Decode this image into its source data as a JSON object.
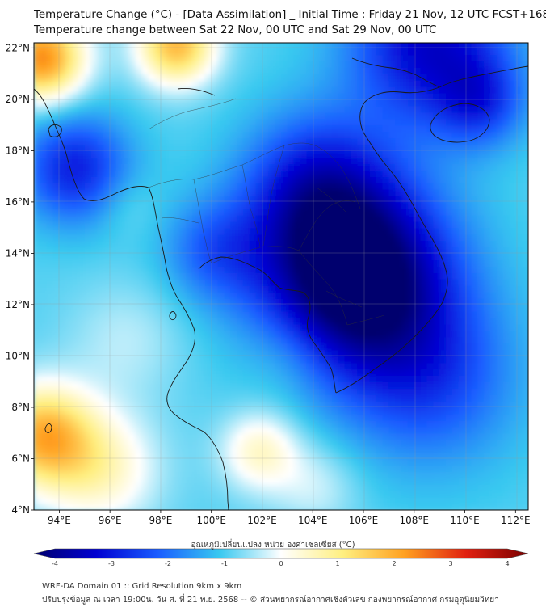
{
  "titles": {
    "line1": "Temperature Change (°C) - [Data Assimilation] _ Initial Time : Friday 21 Nov, 12 UTC FCST+168",
    "line2": "Temperature change between Sat 22 Nov, 00 UTC and Sat 29 Nov, 00 UTC"
  },
  "map": {
    "lon_range": [
      93,
      112.5
    ],
    "lat_range": [
      4,
      22.2
    ],
    "x_ticks": [
      "94°E",
      "96°E",
      "98°E",
      "100°E",
      "102°E",
      "104°E",
      "106°E",
      "108°E",
      "110°E",
      "112°E"
    ],
    "x_tick_values": [
      94,
      96,
      98,
      100,
      102,
      104,
      106,
      108,
      110,
      112
    ],
    "y_ticks": [
      "22°N",
      "20°N",
      "18°N",
      "16°N",
      "14°N",
      "12°N",
      "10°N",
      "8°N",
      "6°N",
      "4°N"
    ],
    "y_tick_values": [
      22,
      20,
      18,
      16,
      14,
      12,
      10,
      8,
      6,
      4
    ],
    "field_centers": [
      {
        "lon": 105.5,
        "lat": 13.0,
        "value": -3.8,
        "spread": 2.6
      },
      {
        "lon": 104.0,
        "lat": 16.5,
        "value": -1.6,
        "spread": 2.0
      },
      {
        "lon": 108.5,
        "lat": 22.0,
        "value": -2.2,
        "spread": 2.2
      },
      {
        "lon": 110.5,
        "lat": 19.8,
        "value": -1.2,
        "spread": 1.2
      },
      {
        "lon": 100.0,
        "lat": 14.0,
        "value": -1.0,
        "spread": 1.4
      },
      {
        "lon": 94.5,
        "lat": 17.2,
        "value": -1.8,
        "spread": 1.5
      },
      {
        "lon": 108.5,
        "lat": 9.0,
        "value": -1.3,
        "spread": 2.4
      },
      {
        "lon": 93.2,
        "lat": 21.5,
        "value": 3.0,
        "spread": 1.2
      },
      {
        "lon": 98.5,
        "lat": 22.0,
        "value": 2.5,
        "spread": 1.1
      },
      {
        "lon": 93.2,
        "lat": 6.8,
        "value": 2.5,
        "spread": 1.4
      },
      {
        "lon": 95.5,
        "lat": 5.5,
        "value": 1.3,
        "spread": 1.6
      },
      {
        "lon": 101.8,
        "lat": 6.2,
        "value": 1.3,
        "spread": 1.1
      },
      {
        "lon": 96.5,
        "lat": 10.5,
        "value": 0.5,
        "spread": 1.6
      },
      {
        "lon": 103.0,
        "lat": 10.0,
        "value": 0.4,
        "spread": 1.3
      },
      {
        "lon": 96.5,
        "lat": 15.8,
        "value": 0.3,
        "spread": 0.9
      },
      {
        "lon": 104.0,
        "lat": 4.8,
        "value": 0.6,
        "spread": 1.2
      }
    ]
  },
  "colorbar": {
    "title": "อุณหภูมิเปลี่ยนแปลง หน่วย องศาเซลเซียส (°C)",
    "min": -4,
    "max": 4,
    "tick_labels": [
      "-4",
      "-3",
      "-2",
      "-1",
      "0",
      "1",
      "2",
      "3",
      "4"
    ],
    "tick_values": [
      -4,
      -3,
      -2,
      -1,
      0,
      1,
      2,
      3,
      4
    ],
    "colors": [
      "#00006e",
      "#0000d0",
      "#1a5cff",
      "#38c8f0",
      "#ffffff",
      "#ffef80",
      "#ffa020",
      "#e02010",
      "#7a0000"
    ]
  },
  "footer": {
    "line1": "WRF-DA Domain 01 :: Grid Resolution 9km x 9km",
    "line2": "ปรับปรุงข้อมูล ณ เวลา 19:00น. วัน ศ. ที่ 21 พ.ย. 2568 -- © ส่วนพยากรณ์อากาศเชิงตัวเลข กองพยากรณ์อากาศ กรมอุตุนิยมวิทยา"
  }
}
